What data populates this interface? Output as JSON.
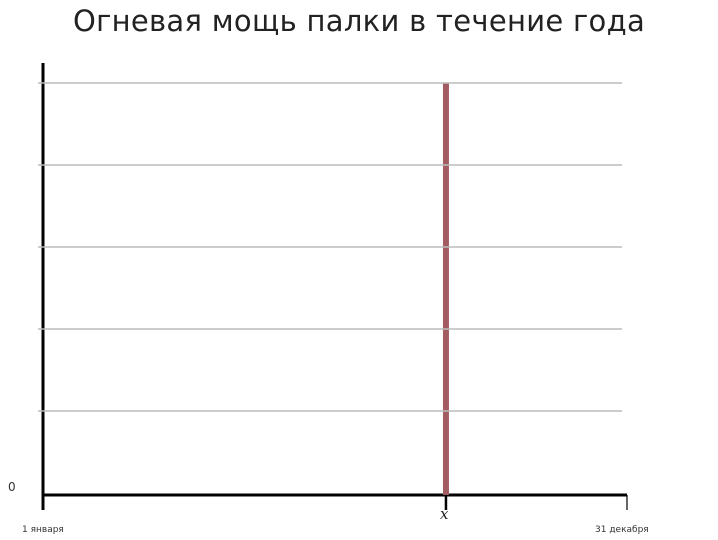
{
  "chart_data": {
    "type": "bar",
    "title": "Огневая мощь палки в течение года",
    "xlabel": "",
    "ylabel": "",
    "x_tick_labels": [
      "1 января",
      "x",
      "31 декабря"
    ],
    "y_tick_labels": [
      "0"
    ],
    "gridlines": 5,
    "grid": true,
    "bars": [
      {
        "x_label": "x",
        "x_fraction_of_year": 0.69,
        "value_fraction_of_max": 1.0
      }
    ],
    "bar_color": "#a35d62"
  }
}
